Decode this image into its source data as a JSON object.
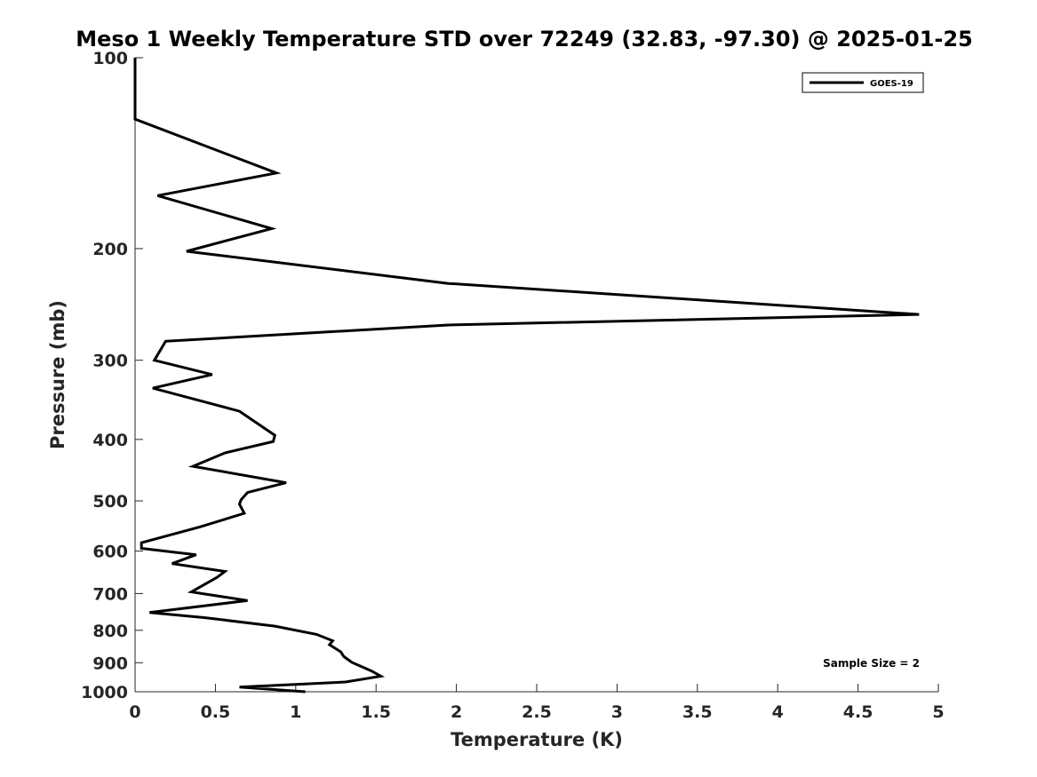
{
  "chart_data": {
    "type": "line",
    "title": "Meso 1 Weekly Temperature STD over 72249 (32.83, -97.30) @ 2025-01-25",
    "xlabel": "Temperature (K)",
    "ylabel": "Pressure (mb)",
    "xlim": [
      0,
      5
    ],
    "ylim": [
      1000,
      100
    ],
    "y_scale": "log",
    "x_ticks": [
      "0",
      "0.5",
      "1",
      "1.5",
      "2",
      "2.5",
      "3",
      "3.5",
      "4",
      "4.5",
      "5"
    ],
    "y_ticks": [
      "100",
      "200",
      "300",
      "400",
      "500",
      "600",
      "700",
      "800",
      "900",
      "1000"
    ],
    "legend_position": "top-right",
    "annotation": "Sample Size = 2",
    "series": [
      {
        "name": "GOES-19",
        "color": "#000000",
        "points": [
          [
            0.0,
            100
          ],
          [
            0.0,
            125
          ],
          [
            0.88,
            152
          ],
          [
            0.14,
            165
          ],
          [
            0.85,
            186
          ],
          [
            0.32,
            202
          ],
          [
            1.95,
            227
          ],
          [
            4.88,
            254
          ],
          [
            1.95,
            264
          ],
          [
            0.19,
            280
          ],
          [
            0.12,
            300
          ],
          [
            0.48,
            316
          ],
          [
            0.11,
            332
          ],
          [
            0.65,
            361
          ],
          [
            0.87,
            394
          ],
          [
            0.86,
            403
          ],
          [
            0.56,
            420
          ],
          [
            0.36,
            441
          ],
          [
            0.94,
            468
          ],
          [
            0.7,
            485
          ],
          [
            0.66,
            498
          ],
          [
            0.65,
            506
          ],
          [
            0.68,
            523
          ],
          [
            0.4,
            550
          ],
          [
            0.04,
            582
          ],
          [
            0.04,
            594
          ],
          [
            0.38,
            608
          ],
          [
            0.23,
            628
          ],
          [
            0.56,
            646
          ],
          [
            0.51,
            660
          ],
          [
            0.35,
            696
          ],
          [
            0.7,
            718
          ],
          [
            0.09,
            750
          ],
          [
            0.43,
            764
          ],
          [
            0.87,
            788
          ],
          [
            1.13,
            812
          ],
          [
            1.23,
            831
          ],
          [
            1.21,
            843
          ],
          [
            1.28,
            865
          ],
          [
            1.3,
            880
          ],
          [
            1.35,
            899
          ],
          [
            1.47,
            927
          ],
          [
            1.53,
            945
          ],
          [
            1.31,
            965
          ],
          [
            0.65,
            983
          ],
          [
            1.06,
            1000
          ]
        ]
      }
    ]
  }
}
